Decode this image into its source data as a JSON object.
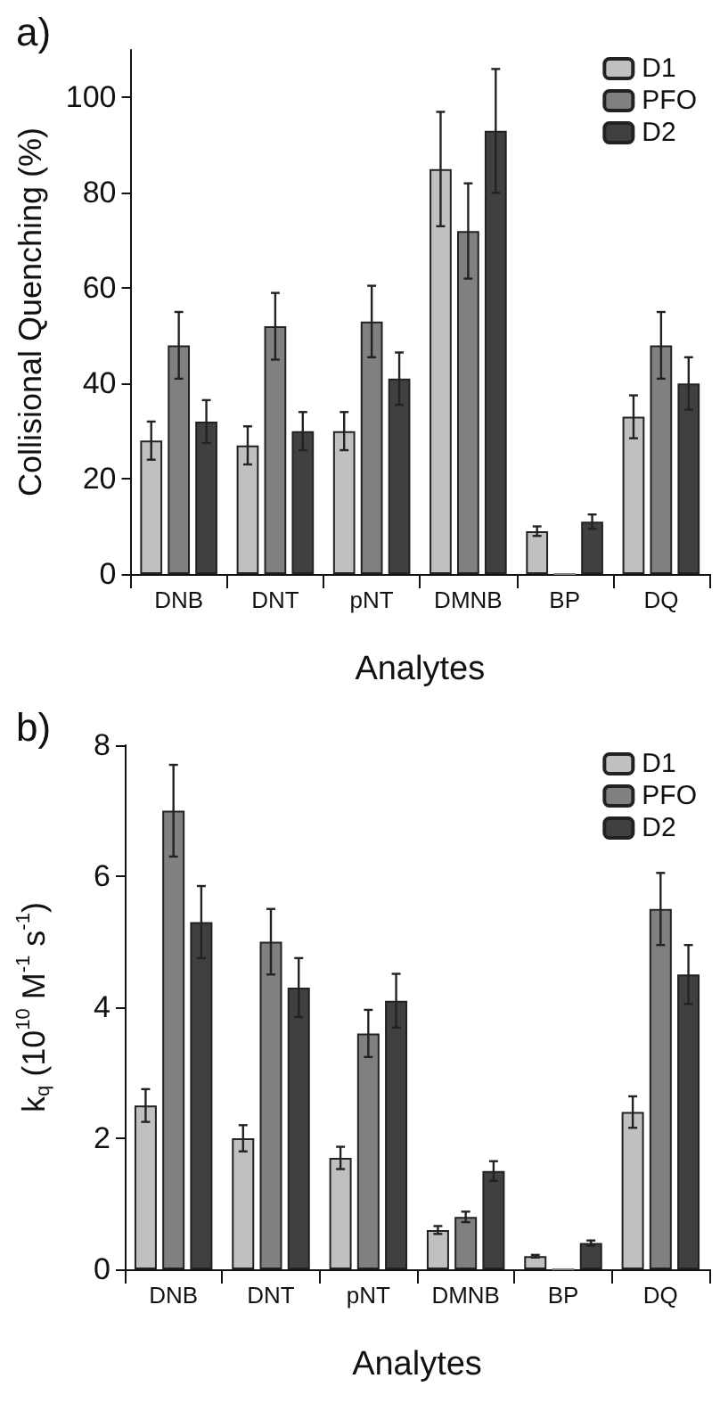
{
  "chart_data": [
    {
      "type": "bar",
      "title": "a)",
      "xlabel": "Analytes",
      "ylabel": "Collisional Quenching (%)",
      "categories": [
        "DNB",
        "DNT",
        "pNT",
        "DMNB",
        "BP",
        "DQ"
      ],
      "ylim": [
        0,
        110
      ],
      "yticks": [
        0,
        20,
        40,
        60,
        80,
        100
      ],
      "grid": false,
      "legend": "top right",
      "series": [
        {
          "name": "D1",
          "color": "#c0c0c0",
          "values": [
            28,
            27,
            30,
            85,
            9,
            33
          ],
          "errors": [
            4,
            4,
            4,
            12,
            1,
            4.5
          ]
        },
        {
          "name": "PFO",
          "color": "#808080",
          "values": [
            48,
            52,
            53,
            72,
            0,
            48
          ],
          "errors": [
            7,
            7,
            7.5,
            10,
            null,
            7
          ]
        },
        {
          "name": "D2",
          "color": "#404040",
          "values": [
            32,
            30,
            41,
            93,
            11,
            40
          ],
          "errors": [
            4.5,
            4,
            5.5,
            13,
            1.5,
            5.5
          ]
        }
      ]
    },
    {
      "type": "bar",
      "title": "b)",
      "xlabel": "Analytes",
      "ylabel": "k$_{q}$ (10$^{10}$ M$^{-1}$ s$^{-1}$)",
      "categories": [
        "DNB",
        "DNT",
        "pNT",
        "DMNB",
        "BP",
        "DQ"
      ],
      "ylim": [
        0,
        8
      ],
      "yticks": [
        0,
        2,
        4,
        6,
        8
      ],
      "grid": false,
      "legend": "top right",
      "series": [
        {
          "name": "D1",
          "color": "#c0c0c0",
          "values": [
            2.5,
            2.0,
            1.7,
            0.6,
            0.2,
            2.4
          ],
          "errors": [
            0.25,
            0.2,
            0.17,
            0.06,
            0.02,
            0.24
          ]
        },
        {
          "name": "PFO",
          "color": "#808080",
          "values": [
            7.0,
            5.0,
            3.6,
            0.8,
            0,
            5.5
          ],
          "errors": [
            0.7,
            0.5,
            0.36,
            0.08,
            null,
            0.55
          ]
        },
        {
          "name": "D2",
          "color": "#404040",
          "values": [
            5.3,
            4.3,
            4.1,
            1.5,
            0.4,
            4.5
          ],
          "errors": [
            0.55,
            0.45,
            0.41,
            0.15,
            0.04,
            0.45
          ]
        }
      ]
    }
  ]
}
